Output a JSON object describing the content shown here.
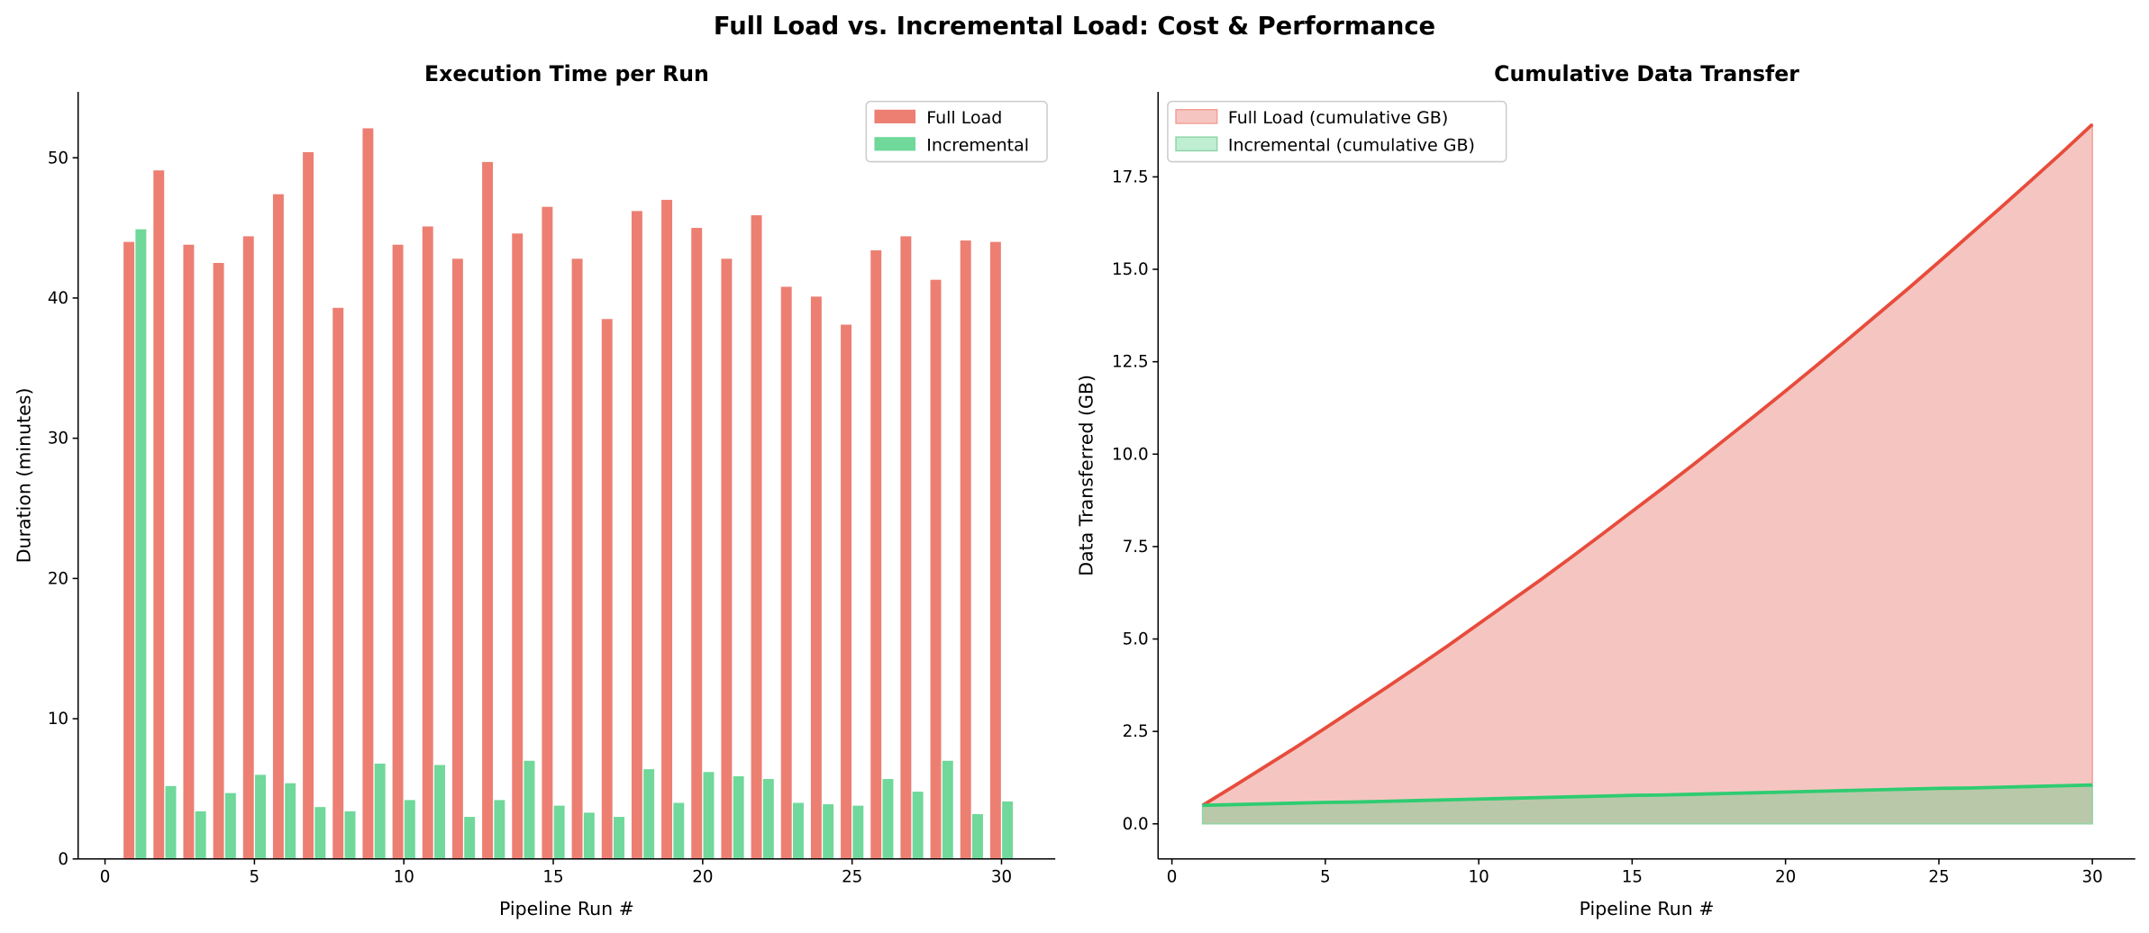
{
  "title": "Full Load vs. Incremental Load: Cost & Performance",
  "colors": {
    "full": "#ec7f72",
    "incremental": "#6fd89a",
    "full_line": "#e74c3c",
    "incremental_line": "#2ecc71",
    "full_fill": "#f5c6c1",
    "incremental_fill": "#bfeed2",
    "overlap_fill": "#b9c8a8"
  },
  "chart_data": [
    {
      "type": "bar",
      "title": "Execution Time per Run",
      "xlabel": "Pipeline Run #",
      "ylabel": "Duration (minutes)",
      "xlim": [
        -0.9,
        31.8
      ],
      "ylim": [
        0,
        54.7
      ],
      "xticks": [
        0,
        5,
        10,
        15,
        20,
        25,
        30
      ],
      "yticks": [
        0,
        10,
        20,
        30,
        40,
        50
      ],
      "legend": "top-right",
      "grid": false,
      "x": [
        1,
        2,
        3,
        4,
        5,
        6,
        7,
        8,
        9,
        10,
        11,
        12,
        13,
        14,
        15,
        16,
        17,
        18,
        19,
        20,
        21,
        22,
        23,
        24,
        25,
        26,
        27,
        28,
        29,
        30
      ],
      "series": [
        {
          "name": "Full Load",
          "values": [
            44.0,
            49.1,
            43.8,
            42.5,
            44.4,
            47.4,
            50.4,
            39.3,
            52.1,
            43.8,
            45.1,
            42.8,
            49.7,
            44.6,
            46.5,
            42.8,
            38.5,
            46.2,
            47.0,
            45.0,
            42.8,
            45.9,
            40.8,
            40.1,
            38.1,
            43.4,
            44.4,
            41.3,
            44.1,
            44.0
          ]
        },
        {
          "name": "Incremental",
          "values": [
            44.9,
            5.2,
            3.4,
            4.7,
            6.0,
            5.4,
            3.7,
            3.4,
            6.8,
            4.2,
            6.7,
            3.0,
            4.2,
            7.0,
            3.8,
            3.3,
            3.0,
            6.4,
            4.0,
            6.2,
            5.9,
            5.7,
            4.0,
            3.9,
            3.8,
            5.7,
            4.8,
            7.0,
            3.2,
            4.1
          ]
        }
      ]
    },
    {
      "type": "area",
      "title": "Cumulative Data Transfer",
      "xlabel": "Pipeline Run #",
      "ylabel": "Data Transferred (GB)",
      "xlim": [
        -0.45,
        31.4
      ],
      "ylim": [
        -0.95,
        19.8
      ],
      "xticks": [
        0,
        5,
        10,
        15,
        20,
        25,
        30
      ],
      "yticks": [
        "0.0",
        "2.5",
        "5.0",
        "7.5",
        "10.0",
        "12.5",
        "15.0",
        "17.5"
      ],
      "legend": "top-left",
      "grid": false,
      "x": [
        1,
        2,
        3,
        4,
        5,
        6,
        7,
        8,
        9,
        10,
        11,
        12,
        13,
        14,
        15,
        16,
        17,
        18,
        19,
        20,
        21,
        22,
        23,
        24,
        25,
        26,
        27,
        28,
        29,
        30
      ],
      "series": [
        {
          "name": "Full Load (cumulative GB)",
          "values": [
            0.5,
            1.01,
            1.53,
            2.05,
            2.59,
            3.14,
            3.69,
            4.25,
            4.82,
            5.41,
            6.0,
            6.59,
            7.2,
            7.82,
            8.45,
            9.08,
            9.72,
            10.38,
            11.04,
            11.71,
            12.39,
            13.08,
            13.78,
            14.48,
            15.2,
            15.93,
            16.66,
            17.4,
            18.15,
            18.92
          ]
        },
        {
          "name": "Incremental (cumulative GB)",
          "values": [
            0.5,
            0.52,
            0.54,
            0.56,
            0.58,
            0.59,
            0.61,
            0.63,
            0.65,
            0.67,
            0.69,
            0.71,
            0.73,
            0.75,
            0.77,
            0.78,
            0.8,
            0.82,
            0.84,
            0.86,
            0.88,
            0.9,
            0.92,
            0.94,
            0.96,
            0.97,
            0.99,
            1.01,
            1.03,
            1.05
          ]
        }
      ]
    }
  ]
}
